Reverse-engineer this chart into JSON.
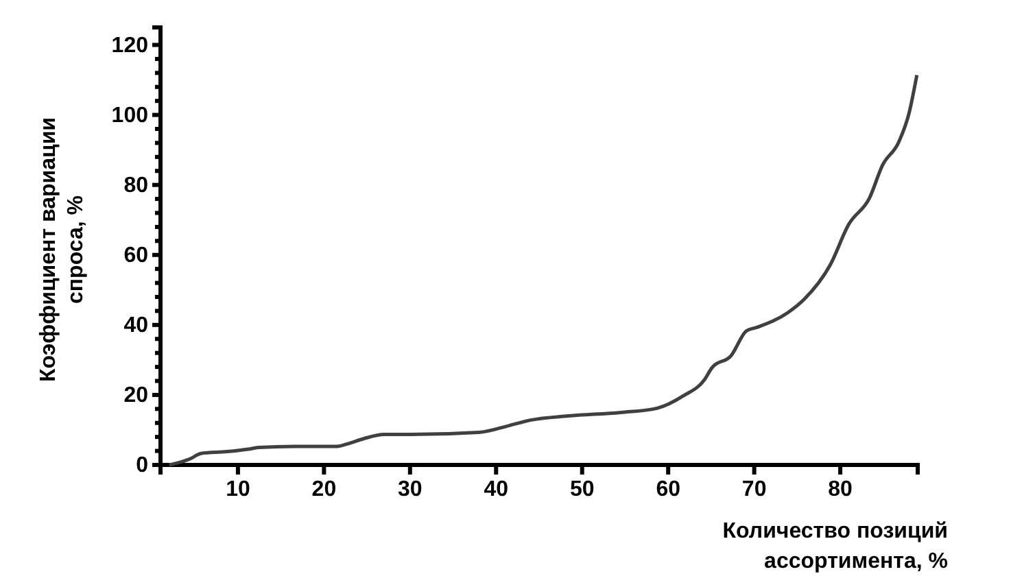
{
  "chart_data": {
    "type": "line",
    "xlabel": "Количество позиций\nассортимента, %",
    "ylabel": "Коэффициент вариации\nспроса, %",
    "x": [
      2,
      4.5,
      5.7,
      8.7,
      11.2,
      12.4,
      16.6,
      21.5,
      22.7,
      24.6,
      27,
      30,
      38,
      41.6,
      44,
      48.4,
      54.5,
      58.7,
      61.8,
      64.2,
      65.1,
      67.3,
      69.1,
      70.3,
      73.9,
      75.8,
      78.8,
      81,
      83.4,
      84.9,
      86.8,
      88,
      88.9
    ],
    "series": [
      {
        "color": "#404040",
        "values": [
          0,
          1.8,
          3.3,
          3.8,
          4.5,
          5,
          5.3,
          5.3,
          6,
          7.5,
          8.7,
          8.7,
          9.3,
          11.3,
          12.8,
          14,
          15,
          16.2,
          19.8,
          24.3,
          27.8,
          31.2,
          38.3,
          39.3,
          43.5,
          47.3,
          57,
          68.8,
          76.3,
          85.6,
          92.3,
          100.6,
          111.4
        ]
      }
    ],
    "xlim": [
      1,
      89
    ],
    "xticks": [
      10,
      20,
      30,
      40,
      50,
      60,
      70,
      80
    ],
    "ylim": [
      0,
      125
    ],
    "yticks": [
      0,
      {
        "value": 4,
        "label": null
      },
      {
        "value": 8,
        "label": null
      },
      {
        "value": 12,
        "label": null
      },
      {
        "value": 16,
        "label": null
      },
      20,
      {
        "value": 24,
        "label": null
      },
      {
        "value": 28,
        "label": null
      },
      {
        "value": 32,
        "label": null
      },
      {
        "value": 36,
        "label": null
      },
      40,
      {
        "value": 44,
        "label": null
      },
      {
        "value": 48,
        "label": null
      },
      {
        "value": 52,
        "label": null
      },
      {
        "value": 56,
        "label": null
      },
      60,
      {
        "value": 64,
        "label": null
      },
      {
        "value": 68,
        "label": null
      },
      {
        "value": 72,
        "label": null
      },
      {
        "value": 76,
        "label": null
      },
      80,
      {
        "value": 84,
        "label": null
      },
      {
        "value": 88,
        "label": null
      },
      {
        "value": 92,
        "label": null
      },
      {
        "value": 96,
        "label": null
      },
      100,
      {
        "value": 104,
        "label": null
      },
      {
        "value": 108,
        "label": null
      },
      {
        "value": 112,
        "label": null
      },
      {
        "value": 116,
        "label": null
      },
      120
    ],
    "marker": "none",
    "line_style": "solid"
  }
}
